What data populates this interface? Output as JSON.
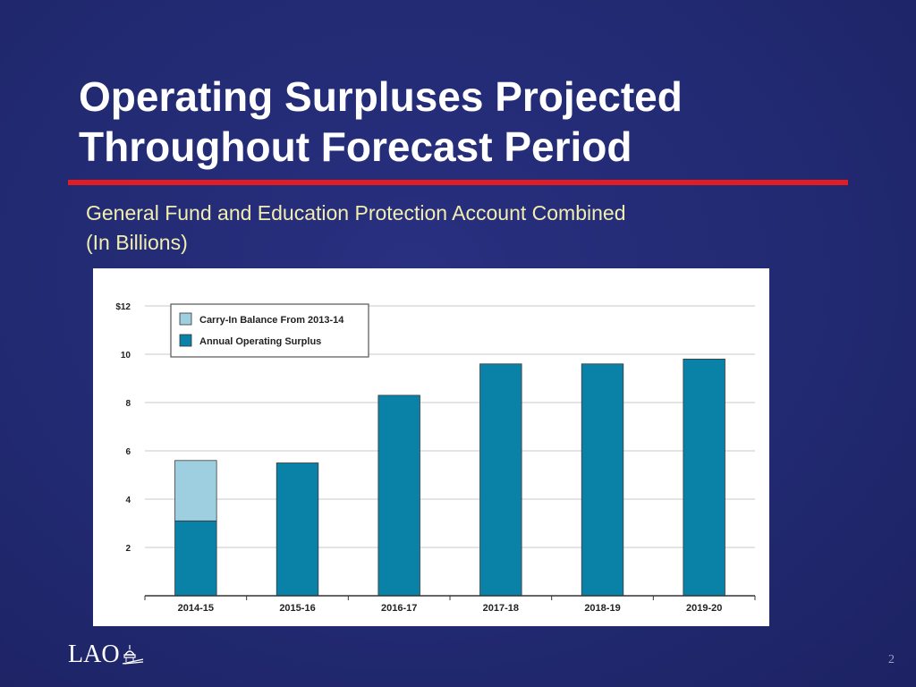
{
  "slide": {
    "title_line1": "Operating Surpluses Projected",
    "title_line2": "Throughout Forecast Period",
    "subtitle_line1": "General Fund and Education Protection Account Combined",
    "subtitle_line2": "(In Billions)",
    "logo_text": "LAO",
    "page_number": "2"
  },
  "colors": {
    "background": "#232a74",
    "title": "#ffffff",
    "rule": "#e31b23",
    "subtitle": "#f2eeb0",
    "carry_in": "#9ecfe0",
    "operating_surplus": "#0a82a8"
  },
  "chart_data": {
    "type": "bar",
    "stacked": true,
    "categories": [
      "2014-15",
      "2015-16",
      "2016-17",
      "2017-18",
      "2018-19",
      "2019-20"
    ],
    "series": [
      {
        "name": "Annual Operating Surplus",
        "color": "#0a82a8",
        "values": [
          3.1,
          5.5,
          8.3,
          9.6,
          9.6,
          9.8
        ]
      },
      {
        "name": "Carry-In Balance From 2013-14",
        "color": "#9ecfe0",
        "values": [
          2.5,
          0,
          0,
          0,
          0,
          0
        ]
      }
    ],
    "legend": [
      "Carry-In Balance From 2013-14",
      "Annual Operating Surplus"
    ],
    "legend_position": "top-left",
    "ylim": [
      0,
      12
    ],
    "yticks": [
      2,
      4,
      6,
      8,
      10,
      12
    ],
    "ytick_labels": [
      "2",
      "4",
      "6",
      "8",
      "10",
      "$12"
    ],
    "grid": true
  }
}
